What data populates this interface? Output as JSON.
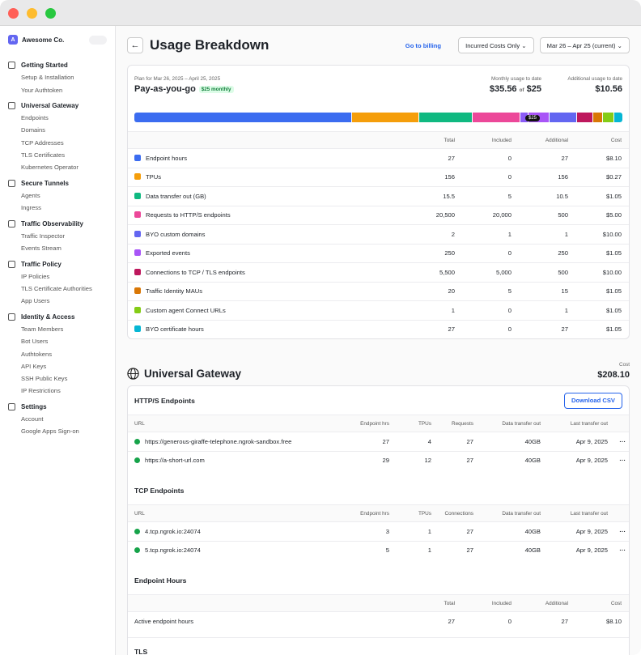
{
  "sidebar": {
    "avatar": "A",
    "org": "Awesome Co.",
    "sections": [
      {
        "title": "Getting Started",
        "items": [
          "Setup & Installation",
          "Your Authtoken"
        ]
      },
      {
        "title": "Universal Gateway",
        "items": [
          "Endpoints",
          "Domains",
          "TCP Addresses",
          "TLS Certificates",
          "Kubernetes Operator"
        ]
      },
      {
        "title": "Secure Tunnels",
        "items": [
          "Agents",
          "Ingress"
        ]
      },
      {
        "title": "Traffic Observability",
        "items": [
          "Traffic Inspector",
          "Events Stream"
        ]
      },
      {
        "title": "Traffic Policy",
        "items": [
          "IP Policies",
          "TLS Certificate Authorities",
          "App Users"
        ]
      },
      {
        "title": "Identity & Access",
        "items": [
          "Team Members",
          "Bot Users",
          "Authtokens",
          "API Keys",
          "SSH Public Keys",
          "IP Restrictions"
        ]
      },
      {
        "title": "Settings",
        "items": [
          "Account",
          "Google Apps Sign-on"
        ]
      }
    ]
  },
  "header": {
    "title": "Usage Breakdown",
    "billing_link": "Go to billing",
    "filter": "Incurred Costs Only",
    "date_range": "Mar 26 – Apr 25 (current)"
  },
  "plan": {
    "period": "Plan for Mar 26, 2025 – April 25, 2025",
    "name": "Pay-as-you-go",
    "badge": "$25 monthly",
    "monthly_label": "Monthly usage to date",
    "monthly_value": "$35.56",
    "of": "of",
    "included": "$25",
    "additional_label": "Additional usage to date",
    "additional_value": "$10.56",
    "marker": "$25",
    "usage_bar": [
      {
        "color": "#3b6cf0",
        "share": 273
      },
      {
        "color": "#f59e0b",
        "share": 83
      },
      {
        "color": "#10b981",
        "share": 67
      },
      {
        "color": "#ec4899",
        "share": 59
      },
      {
        "color": "#8b5cf6",
        "share": 9
      },
      {
        "color": "#a855f7",
        "share": 25
      },
      {
        "color": "#6366f1",
        "share": 34
      },
      {
        "color": "#be185d",
        "share": 19
      },
      {
        "color": "#d97706",
        "share": 12
      },
      {
        "color": "#84cc16",
        "share": 13
      },
      {
        "color": "#06b6d4",
        "share": 10
      }
    ],
    "columns": [
      "Total",
      "Included",
      "Additional",
      "Cost"
    ],
    "rows": [
      {
        "color": "#3b6cf0",
        "cells": [
          "Endpoint hours",
          "27",
          "0",
          "27",
          "$8.10"
        ]
      },
      {
        "color": "#f59e0b",
        "cells": [
          "TPUs",
          "156",
          "0",
          "156",
          "$0.27"
        ]
      },
      {
        "color": "#10b981",
        "cells": [
          "Data transfer out (GB)",
          "15.5",
          "5",
          "10.5",
          "$1.05"
        ]
      },
      {
        "color": "#ec4899",
        "cells": [
          "Requests to HTTP/S endpoints",
          "20,500",
          "20,000",
          "500",
          "$5.00"
        ]
      },
      {
        "color": "#6366f1",
        "cells": [
          "BYO custom domains",
          "2",
          "1",
          "1",
          "$10.00"
        ]
      },
      {
        "color": "#a855f7",
        "cells": [
          "Exported events",
          "250",
          "0",
          "250",
          "$1.05"
        ]
      },
      {
        "color": "#be185d",
        "cells": [
          "Connections to TCP / TLS endpoints",
          "5,500",
          "5,000",
          "500",
          "$10.00"
        ]
      },
      {
        "color": "#d97706",
        "cells": [
          "Traffic Identity MAUs",
          "20",
          "5",
          "15",
          "$1.05"
        ]
      },
      {
        "color": "#84cc16",
        "cells": [
          "Custom agent Connect URLs",
          "1",
          "0",
          "1",
          "$1.05"
        ]
      },
      {
        "color": "#06b6d4",
        "cells": [
          "BYO certificate hours",
          "27",
          "0",
          "27",
          "$1.05"
        ]
      }
    ]
  },
  "gateway": {
    "cost_label": "Cost",
    "title": "Universal Gateway",
    "cost": "$208.10",
    "http": {
      "title": "HTTP/S Endpoints",
      "button": "Download CSV",
      "columns": [
        "URL",
        "Endpoint hrs",
        "TPUs",
        "Requests",
        "Data transfer out",
        "Last transfer out"
      ],
      "rows": [
        [
          "https://generous-giraffe-telephone.ngrok-sandbox.free",
          "27",
          "4",
          "27",
          "40GB",
          "Apr 9, 2025"
        ],
        [
          "https://a-short-url.com",
          "29",
          "12",
          "27",
          "40GB",
          "Apr 9, 2025"
        ]
      ]
    },
    "tcp": {
      "title": "TCP Endpoints",
      "columns": [
        "URL",
        "Endpoint hrs",
        "TPUs",
        "Connections",
        "Data transfer out",
        "Last transfer out"
      ],
      "rows": [
        [
          "4.tcp.ngrok.io:24074",
          "3",
          "1",
          "27",
          "40GB",
          "Apr 9, 2025"
        ],
        [
          "5.tcp.ngrok.io:24074",
          "5",
          "1",
          "27",
          "40GB",
          "Apr 9, 2025"
        ]
      ]
    },
    "hours": {
      "title": "Endpoint Hours",
      "columns": [
        "Total",
        "Included",
        "Additional",
        "Cost"
      ],
      "rows": [
        [
          "Active endpoint hours",
          "27",
          "0",
          "27",
          "$8.10"
        ]
      ]
    },
    "tls": {
      "title": "TLS"
    }
  }
}
